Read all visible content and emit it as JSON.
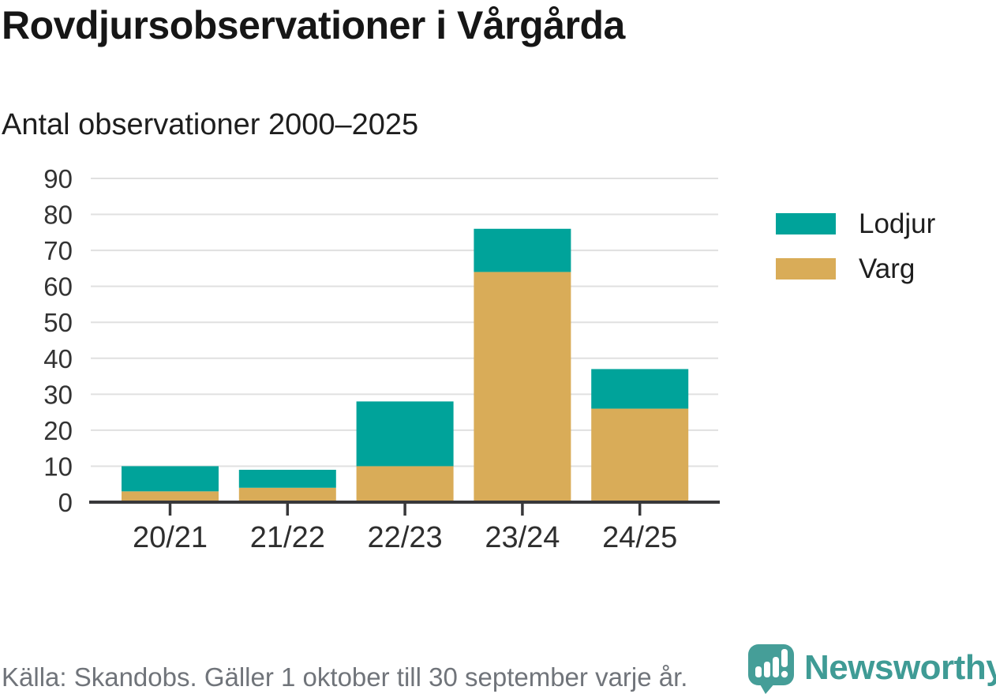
{
  "header": {},
  "colors": {
    "teal": "#00a39a",
    "tan": "#d9ac58",
    "grid": "#e0e0e0",
    "axis": "#38383a",
    "axis_text": "#333333",
    "x_text": "#2e2e2e",
    "brand_teal": "#3f9b95",
    "brand_bubble": "#459e98"
  },
  "legend": {
    "items": [
      {
        "label": "Lodjur",
        "color": "#00a39a"
      },
      {
        "label": "Varg",
        "color": "#d9ac58"
      }
    ]
  },
  "footer": {
    "source": "Källa: Skandobs. Gäller 1 oktober till 30 september varje år.",
    "brand": "Newsworthy"
  },
  "chart_data": {
    "type": "bar",
    "stacked": true,
    "title": "Rovdjursobservationer i Vårgårda",
    "subtitle": "Antal observationer 2000–2025",
    "categories": [
      "20/21",
      "21/22",
      "22/23",
      "23/24",
      "24/25"
    ],
    "series": [
      {
        "name": "Varg",
        "color": "#d9ac58",
        "values": [
          3,
          4,
          10,
          64,
          26
        ]
      },
      {
        "name": "Lodjur",
        "color": "#00a39a",
        "values": [
          7,
          5,
          18,
          12,
          11
        ]
      }
    ],
    "totals": [
      10,
      9,
      28,
      76,
      37
    ],
    "xlabel": "",
    "ylabel": "",
    "ylim": [
      0,
      90
    ],
    "yticks": [
      0,
      10,
      20,
      30,
      40,
      50,
      60,
      70,
      80,
      90
    ],
    "grid": true,
    "legend_position": "right"
  }
}
